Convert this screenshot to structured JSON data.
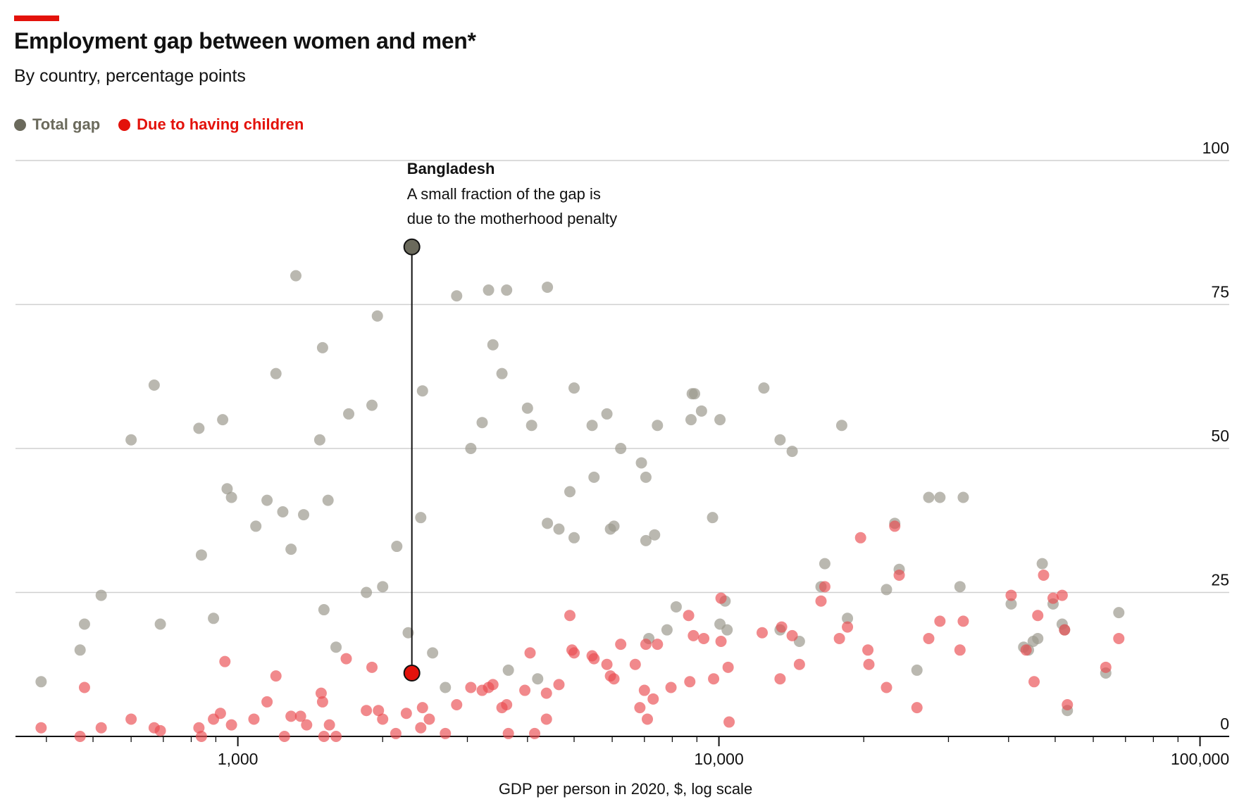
{
  "header": {
    "title": "Employment gap between women and men*",
    "subtitle": "By country, percentage points"
  },
  "legend": {
    "items": [
      {
        "label": "Total gap",
        "color": "#6b6a5c"
      },
      {
        "label": "Due to having children",
        "color": "#e3120b"
      }
    ]
  },
  "chart_data": {
    "type": "scatter",
    "xlabel": "GDP per person in 2020, $, log scale",
    "ylabel": "",
    "x_scale": "log",
    "xlim": [
      345,
      115000
    ],
    "ylim": [
      0,
      100
    ],
    "y_ticks": [
      0,
      25,
      50,
      75,
      100
    ],
    "x_ticks": [
      {
        "value": 1000,
        "label": "1,000"
      },
      {
        "value": 10000,
        "label": "10,000"
      },
      {
        "value": 100000,
        "label": "100,000"
      }
    ],
    "grid": true,
    "legend_position": "top-left",
    "colors": {
      "total": "#9d9a8e",
      "children": "#ea4a4f",
      "highlight_total": "#6b6a5c",
      "highlight_children": "#e3120b"
    },
    "highlight": {
      "country": "Bangladesh",
      "x": 2300,
      "total": 85,
      "children": 11,
      "annotation_title": "Bangladesh",
      "annotation_lines": [
        "A small fraction of the gap is",
        "due to the motherhood penalty"
      ]
    },
    "series": [
      {
        "name": "Total gap",
        "points": [
          [
            390,
            9.5
          ],
          [
            470,
            15
          ],
          [
            480,
            19.5
          ],
          [
            520,
            24.5
          ],
          [
            600,
            51.5
          ],
          [
            670,
            61
          ],
          [
            690,
            19.5
          ],
          [
            830,
            53.5
          ],
          [
            840,
            31.5
          ],
          [
            890,
            20.5
          ],
          [
            930,
            55
          ],
          [
            950,
            43
          ],
          [
            970,
            41.5
          ],
          [
            1090,
            36.5
          ],
          [
            1150,
            41
          ],
          [
            1200,
            63
          ],
          [
            1240,
            39
          ],
          [
            1290,
            32.5
          ],
          [
            1320,
            80
          ],
          [
            1370,
            38.5
          ],
          [
            1480,
            51.5
          ],
          [
            1500,
            67.5
          ],
          [
            1510,
            22
          ],
          [
            1540,
            41
          ],
          [
            1600,
            15.5
          ],
          [
            1700,
            56
          ],
          [
            1850,
            25
          ],
          [
            1900,
            57.5
          ],
          [
            1950,
            73
          ],
          [
            2000,
            26
          ],
          [
            2140,
            33
          ],
          [
            2260,
            18
          ],
          [
            2400,
            38
          ],
          [
            2420,
            60
          ],
          [
            2540,
            14.5
          ],
          [
            2700,
            8.5
          ],
          [
            2850,
            76.5
          ],
          [
            3050,
            50
          ],
          [
            3220,
            54.5
          ],
          [
            3320,
            77.5
          ],
          [
            3390,
            68
          ],
          [
            3540,
            63
          ],
          [
            3620,
            77.5
          ],
          [
            3650,
            11.5
          ],
          [
            4000,
            57
          ],
          [
            4080,
            54
          ],
          [
            4200,
            10
          ],
          [
            4400,
            78
          ],
          [
            4400,
            37
          ],
          [
            4650,
            36
          ],
          [
            4900,
            42.5
          ],
          [
            5000,
            60.5
          ],
          [
            5000,
            34.5
          ],
          [
            5450,
            54
          ],
          [
            5500,
            45
          ],
          [
            5850,
            56
          ],
          [
            5950,
            36
          ],
          [
            6050,
            36.5
          ],
          [
            6250,
            50
          ],
          [
            6900,
            47.5
          ],
          [
            7050,
            34
          ],
          [
            7050,
            45
          ],
          [
            7150,
            17
          ],
          [
            7350,
            35
          ],
          [
            7450,
            54
          ],
          [
            7800,
            18.5
          ],
          [
            8150,
            22.5
          ],
          [
            8750,
            55
          ],
          [
            8800,
            59.5
          ],
          [
            8900,
            59.5
          ],
          [
            9200,
            56.5
          ],
          [
            9700,
            38
          ],
          [
            10050,
            55
          ],
          [
            10050,
            19.5
          ],
          [
            10300,
            23.5
          ],
          [
            10400,
            18.5
          ],
          [
            12400,
            60.5
          ],
          [
            13400,
            51.5
          ],
          [
            13400,
            18.5
          ],
          [
            14200,
            49.5
          ],
          [
            14700,
            16.5
          ],
          [
            16300,
            26
          ],
          [
            16600,
            30
          ],
          [
            18000,
            54
          ],
          [
            18500,
            20.5
          ],
          [
            22300,
            25.5
          ],
          [
            23200,
            37
          ],
          [
            23700,
            29
          ],
          [
            25800,
            11.5
          ],
          [
            27300,
            41.5
          ],
          [
            28800,
            41.5
          ],
          [
            31700,
            26
          ],
          [
            32200,
            41.5
          ],
          [
            40500,
            23
          ],
          [
            43000,
            15.5
          ],
          [
            44000,
            15
          ],
          [
            45000,
            16.5
          ],
          [
            46000,
            17
          ],
          [
            47000,
            30
          ],
          [
            49500,
            23
          ],
          [
            51700,
            19.5
          ],
          [
            52300,
            18.5
          ],
          [
            53000,
            4.5
          ],
          [
            63700,
            11
          ],
          [
            67800,
            21.5
          ]
        ]
      },
      {
        "name": "Due to having children",
        "points": [
          [
            390,
            1.5
          ],
          [
            470,
            0
          ],
          [
            480,
            8.5
          ],
          [
            520,
            1.5
          ],
          [
            600,
            3
          ],
          [
            670,
            1.5
          ],
          [
            690,
            1
          ],
          [
            830,
            1.5
          ],
          [
            840,
            0
          ],
          [
            890,
            3
          ],
          [
            920,
            4
          ],
          [
            940,
            13
          ],
          [
            970,
            2
          ],
          [
            1080,
            3
          ],
          [
            1150,
            6
          ],
          [
            1200,
            10.5
          ],
          [
            1250,
            0
          ],
          [
            1290,
            3.5
          ],
          [
            1350,
            3.5
          ],
          [
            1390,
            2
          ],
          [
            1490,
            7.5
          ],
          [
            1500,
            6
          ],
          [
            1510,
            0
          ],
          [
            1550,
            2
          ],
          [
            1600,
            0
          ],
          [
            1680,
            13.5
          ],
          [
            1850,
            4.5
          ],
          [
            1900,
            12
          ],
          [
            1960,
            4.5
          ],
          [
            2000,
            3
          ],
          [
            2130,
            0.5
          ],
          [
            2240,
            4
          ],
          [
            2400,
            1.5
          ],
          [
            2420,
            5
          ],
          [
            2500,
            3
          ],
          [
            2700,
            0.5
          ],
          [
            2850,
            5.5
          ],
          [
            3050,
            8.5
          ],
          [
            3220,
            8
          ],
          [
            3320,
            8.5
          ],
          [
            3390,
            9
          ],
          [
            3540,
            5
          ],
          [
            3620,
            5.5
          ],
          [
            3650,
            0.5
          ],
          [
            3950,
            8
          ],
          [
            4050,
            14.5
          ],
          [
            4140,
            0.5
          ],
          [
            4380,
            3
          ],
          [
            4380,
            7.5
          ],
          [
            4650,
            9
          ],
          [
            4900,
            21
          ],
          [
            4950,
            15
          ],
          [
            5000,
            14.5
          ],
          [
            5450,
            14
          ],
          [
            5500,
            13.5
          ],
          [
            5850,
            12.5
          ],
          [
            5950,
            10.5
          ],
          [
            6050,
            10
          ],
          [
            6250,
            16
          ],
          [
            6700,
            12.5
          ],
          [
            6850,
            5
          ],
          [
            7000,
            8
          ],
          [
            7050,
            16
          ],
          [
            7100,
            3
          ],
          [
            7300,
            6.5
          ],
          [
            7450,
            16
          ],
          [
            7950,
            8.5
          ],
          [
            8650,
            21
          ],
          [
            8700,
            9.5
          ],
          [
            8850,
            17.5
          ],
          [
            9300,
            17
          ],
          [
            9750,
            10
          ],
          [
            10100,
            24
          ],
          [
            10100,
            16.5
          ],
          [
            10450,
            12
          ],
          [
            10500,
            2.5
          ],
          [
            12300,
            18
          ],
          [
            13400,
            10
          ],
          [
            13500,
            19
          ],
          [
            14200,
            17.5
          ],
          [
            14700,
            12.5
          ],
          [
            16300,
            23.5
          ],
          [
            16600,
            26
          ],
          [
            17800,
            17
          ],
          [
            18500,
            19
          ],
          [
            19700,
            34.5
          ],
          [
            20400,
            15
          ],
          [
            20500,
            12.5
          ],
          [
            22300,
            8.5
          ],
          [
            23200,
            36.5
          ],
          [
            23700,
            28
          ],
          [
            25800,
            5
          ],
          [
            27300,
            17
          ],
          [
            28800,
            20
          ],
          [
            31700,
            15
          ],
          [
            32200,
            20
          ],
          [
            40500,
            24.5
          ],
          [
            43500,
            15
          ],
          [
            45200,
            9.5
          ],
          [
            46000,
            21
          ],
          [
            47300,
            28
          ],
          [
            49500,
            24
          ],
          [
            51700,
            24.5
          ],
          [
            52300,
            18.5
          ],
          [
            53000,
            5.5
          ],
          [
            63700,
            12
          ],
          [
            67800,
            17
          ]
        ]
      }
    ]
  }
}
